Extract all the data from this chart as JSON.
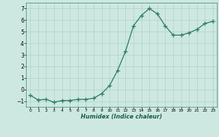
{
  "x": [
    0,
    1,
    2,
    3,
    4,
    5,
    6,
    7,
    8,
    9,
    10,
    11,
    12,
    13,
    14,
    15,
    16,
    17,
    18,
    19,
    20,
    21,
    22,
    23
  ],
  "y": [
    -0.5,
    -0.9,
    -0.85,
    -1.1,
    -0.95,
    -0.95,
    -0.85,
    -0.85,
    -0.75,
    -0.35,
    0.35,
    1.65,
    3.3,
    5.5,
    6.4,
    7.0,
    6.55,
    5.5,
    4.7,
    4.7,
    4.9,
    5.2,
    5.7,
    5.9
  ],
  "line_color": "#2e7d6e",
  "marker": "+",
  "marker_size": 4,
  "xlabel": "Humidex (Indice chaleur)",
  "xlim": [
    -0.5,
    23.5
  ],
  "ylim": [
    -1.5,
    7.5
  ],
  "yticks": [
    -1,
    0,
    1,
    2,
    3,
    4,
    5,
    6,
    7
  ],
  "xticks": [
    0,
    1,
    2,
    3,
    4,
    5,
    6,
    7,
    8,
    9,
    10,
    11,
    12,
    13,
    14,
    15,
    16,
    17,
    18,
    19,
    20,
    21,
    22,
    23
  ],
  "bg_color": "#cde8e0",
  "grid_color": "#b0cfc8",
  "line_width": 1.0
}
